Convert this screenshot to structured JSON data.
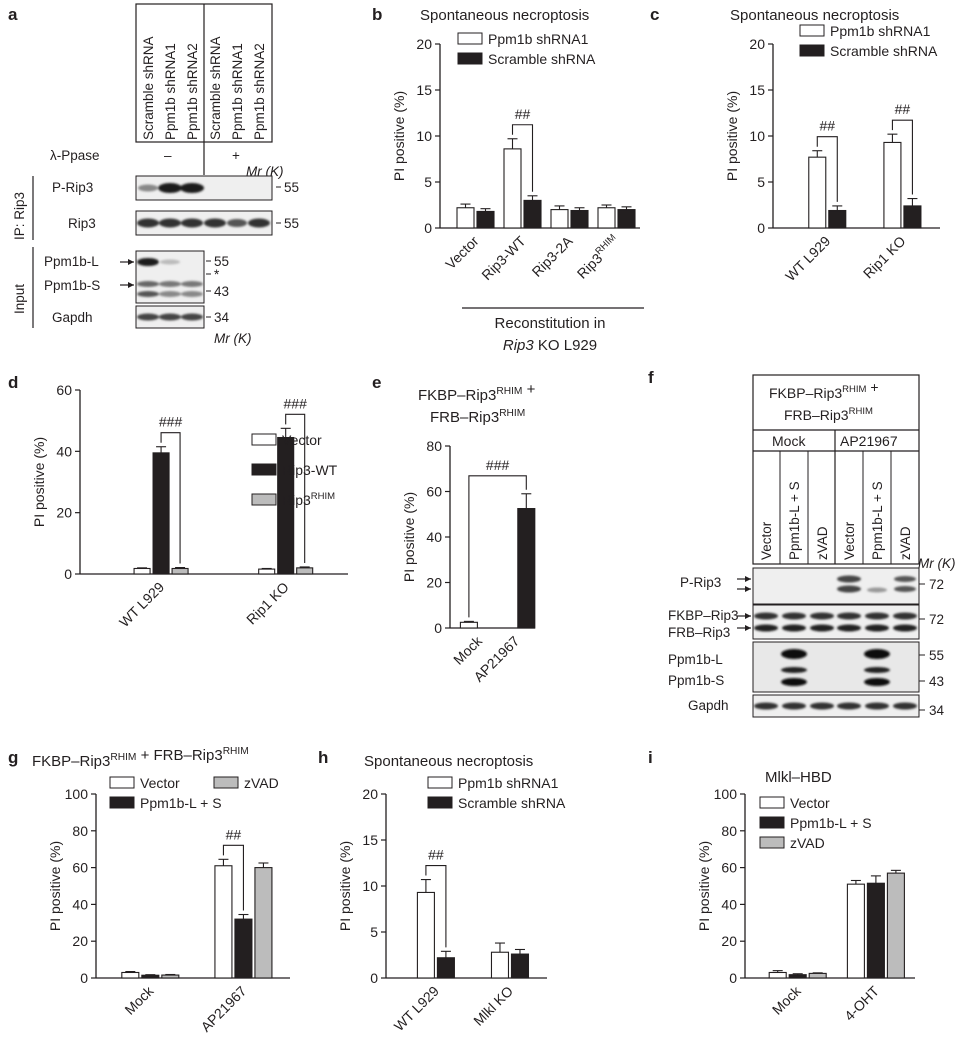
{
  "panels": {
    "a": {
      "letter": "a",
      "lanes": [
        "Scramble shRNA",
        "Ppm1b shRNA1",
        "Ppm1b shRNA2",
        "Scramble shRNA",
        "Ppm1b shRNA1",
        "Ppm1b shRNA2"
      ],
      "ppase_label": "λ-Ppase",
      "ppase_minus": "–",
      "ppase_plus": "+",
      "mr_label": "Mr (K)",
      "ip_label": "IP: Rip3",
      "input_label": "Input",
      "rows": [
        "P-Rip3",
        "Rip3",
        "Ppm1b-L",
        "Ppm1b-S",
        "Gapdh"
      ],
      "markers": [
        "55",
        "55",
        "55",
        "*",
        "43",
        "34"
      ]
    },
    "f": {
      "letter": "f",
      "header_line1": "FKBP–Rip3RHIM +",
      "header_line2": "FRB–Rip3RHIM",
      "group1": "Mock",
      "group2": "AP21967",
      "lanes": [
        "Vector",
        "Ppm1b-L + S",
        "zVAD",
        "Vector",
        "Ppm1b-L + S",
        "zVAD"
      ],
      "mr_label": "Mr (K)",
      "rows": [
        "P-Rip3",
        "FKBP–Rip3",
        "FRB–Rip3",
        "Ppm1b-L",
        "Ppm1b-S",
        "Gapdh"
      ],
      "markers": [
        "72",
        "72",
        "55",
        "43",
        "34"
      ]
    }
  },
  "chart_data": [
    {
      "panel": "b",
      "type": "bar",
      "title": "Spontaneous necroptosis",
      "ylabel": "PI positive (%)",
      "ylim": [
        0,
        20
      ],
      "yticks": [
        "0",
        "5",
        "10",
        "15",
        "20"
      ],
      "categories": [
        "Vector",
        "Rip3-WT",
        "Rip3-2A",
        "Rip3RHIM"
      ],
      "series": [
        {
          "name": "Ppm1b shRNA1",
          "color": "#ffffff",
          "values": [
            2.2,
            8.6,
            2.0,
            2.2
          ],
          "errors": [
            0.4,
            1.1,
            0.4,
            0.3
          ]
        },
        {
          "name": "Scramble shRNA",
          "color": "#231f20",
          "values": [
            1.8,
            3.0,
            1.9,
            2.0
          ],
          "errors": [
            0.3,
            0.5,
            0.3,
            0.3
          ]
        }
      ],
      "significance": "##",
      "group_label_line1": "Reconstitution in",
      "group_label_line2": "Rip3 KO L929",
      "legend": "top"
    },
    {
      "panel": "c",
      "type": "bar",
      "title": "Spontaneous necroptosis",
      "ylabel": "PI positive (%)",
      "ylim": [
        0,
        20
      ],
      "yticks": [
        "0",
        "5",
        "10",
        "15",
        "20"
      ],
      "categories": [
        "WT L929",
        "Rip1 KO"
      ],
      "series": [
        {
          "name": "Ppm1b shRNA1",
          "color": "#ffffff",
          "values": [
            7.7,
            9.3
          ],
          "errors": [
            0.7,
            0.9
          ]
        },
        {
          "name": "Scramble shRNA",
          "color": "#231f20",
          "values": [
            1.9,
            2.4
          ],
          "errors": [
            0.5,
            0.8
          ]
        }
      ],
      "significance": [
        "##",
        "##"
      ],
      "legend": "top-right"
    },
    {
      "panel": "d",
      "type": "bar",
      "ylabel": "PI positive (%)",
      "ylim": [
        0,
        60
      ],
      "yticks": [
        "0",
        "20",
        "40",
        "60"
      ],
      "categories": [
        "WT L929",
        "Rip1 KO"
      ],
      "series": [
        {
          "name": "Vector",
          "color": "#ffffff",
          "values": [
            1.8,
            1.6
          ],
          "errors": [
            0.2,
            0.2
          ]
        },
        {
          "name": "Rip3-WT",
          "color": "#231f20",
          "values": [
            39.5,
            44.5
          ],
          "errors": [
            2.0,
            3.0
          ]
        },
        {
          "name": "Rip3RHIM",
          "color": "#bcbcbc",
          "values": [
            1.8,
            2.0
          ],
          "errors": [
            0.3,
            0.3
          ]
        }
      ],
      "significance": [
        "###",
        "###"
      ],
      "legend": "right"
    },
    {
      "panel": "e",
      "type": "bar",
      "title_line1": "FKBP–Rip3RHIM +",
      "title_line2": "FRB–Rip3RHIM",
      "ylabel": "PI positive (%)",
      "ylim": [
        0,
        80
      ],
      "yticks": [
        "0",
        "20",
        "40",
        "60",
        "80"
      ],
      "categories": [
        "Mock",
        "AP21967"
      ],
      "series": [
        {
          "color": "#ffffff",
          "values": [
            2.5,
            null
          ],
          "errors": [
            0.4,
            null
          ]
        },
        {
          "color": "#231f20",
          "values": [
            null,
            52.5
          ],
          "errors": [
            null,
            6.5
          ]
        }
      ],
      "significance": "###"
    },
    {
      "panel": "g",
      "type": "bar",
      "title": "FKBP–Rip3RHIM + FRB–Rip3RHIM",
      "ylabel": "PI positive (%)",
      "ylim": [
        0,
        100
      ],
      "yticks": [
        "0",
        "20",
        "40",
        "60",
        "80",
        "100"
      ],
      "categories": [
        "Mock",
        "AP21967"
      ],
      "series": [
        {
          "name": "Vector",
          "color": "#ffffff",
          "values": [
            3.0,
            61.0
          ],
          "errors": [
            0.5,
            3.5
          ]
        },
        {
          "name": "Ppm1b-L + S",
          "color": "#231f20",
          "values": [
            1.5,
            32.0
          ],
          "errors": [
            0.3,
            2.5
          ]
        },
        {
          "name": "zVAD",
          "color": "#bcbcbc",
          "values": [
            1.6,
            60.0
          ],
          "errors": [
            0.3,
            2.5
          ]
        }
      ],
      "significance": "##",
      "legend": "top"
    },
    {
      "panel": "h",
      "type": "bar",
      "title": "Spontaneous necroptosis",
      "ylabel": "PI positive (%)",
      "ylim": [
        0,
        20
      ],
      "yticks": [
        "0",
        "5",
        "10",
        "15",
        "20"
      ],
      "categories": [
        "WT L929",
        "Mlkl KO"
      ],
      "series": [
        {
          "name": "Ppm1b shRNA1",
          "color": "#ffffff",
          "values": [
            9.3,
            2.8
          ],
          "errors": [
            1.4,
            1.0
          ]
        },
        {
          "name": "Scramble shRNA",
          "color": "#231f20",
          "values": [
            2.2,
            2.6
          ],
          "errors": [
            0.7,
            0.5
          ]
        }
      ],
      "significance": "##",
      "legend": "top"
    },
    {
      "panel": "i",
      "type": "bar",
      "title": "Mlkl–HBD",
      "ylabel": "PI positive (%)",
      "ylim": [
        0,
        100
      ],
      "yticks": [
        "0",
        "20",
        "40",
        "60",
        "80",
        "100"
      ],
      "categories": [
        "Mock",
        "4-OHT"
      ],
      "series": [
        {
          "name": "Vector",
          "color": "#ffffff",
          "values": [
            3.0,
            51.0
          ],
          "errors": [
            1.0,
            2.0
          ]
        },
        {
          "name": "Ppm1b-L + S",
          "color": "#231f20",
          "values": [
            1.8,
            51.5
          ],
          "errors": [
            0.5,
            4.0
          ]
        },
        {
          "name": "zVAD",
          "color": "#bcbcbc",
          "values": [
            2.5,
            57.0
          ],
          "errors": [
            0.3,
            1.5
          ]
        }
      ],
      "legend": "top"
    }
  ]
}
